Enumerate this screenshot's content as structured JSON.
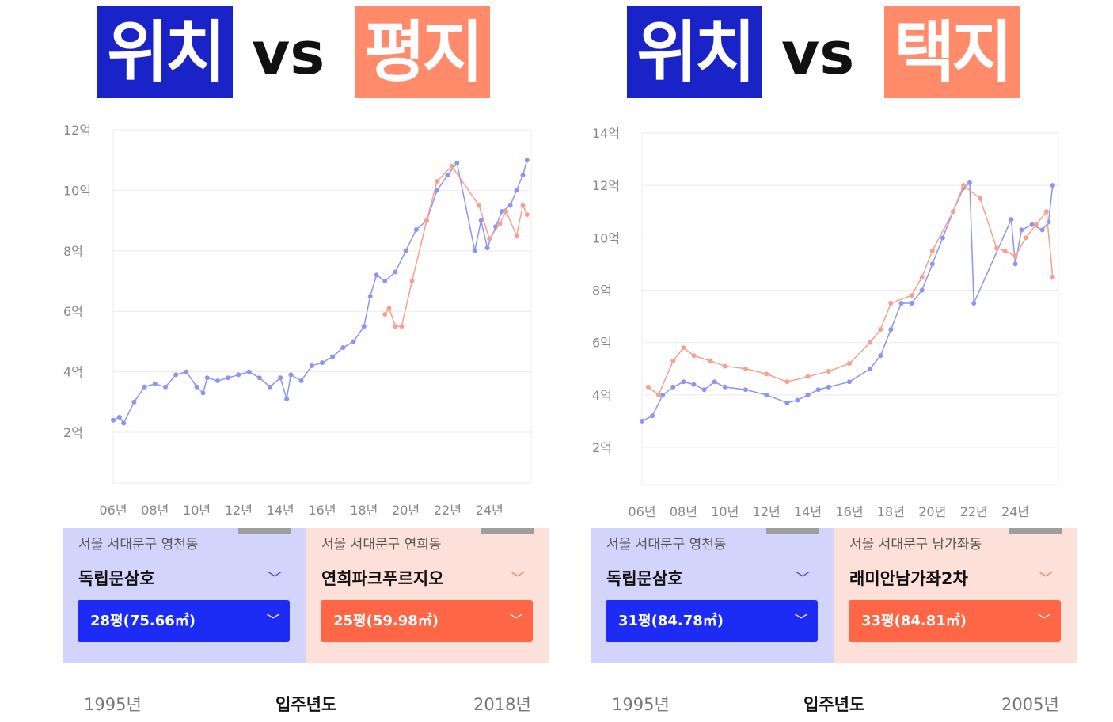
{
  "colors": {
    "blue": "#1a23c8",
    "salmon": "#ff8b6b",
    "series_blue": "#8c96f2",
    "series_red": "#f8a08c"
  },
  "comparisons": [
    {
      "title_left": "위치",
      "vs": "vs",
      "title_right": "평지",
      "left": {
        "address": "서울 서대문구 영천동",
        "name": "독립문삼호",
        "size": "28평(75.66㎡)"
      },
      "right": {
        "address": "서울 서대문구 연희동",
        "name": "연희파크푸르지오",
        "size": "25평(59.98㎡)"
      },
      "move_in": {
        "label": "입주년도",
        "left": "1995년",
        "right": "2018년"
      }
    },
    {
      "title_left": "위치",
      "vs": "vs",
      "title_right": "택지",
      "left": {
        "address": "서울 서대문구 영천동",
        "name": "독립문삼호",
        "size": "31평(84.78㎡)"
      },
      "right": {
        "address": "서울 서대문구 남가좌동",
        "name": "래미안남가좌2차",
        "size": "33평(84.81㎡)"
      },
      "move_in": {
        "label": "입주년도",
        "left": "1995년",
        "right": "2005년"
      }
    }
  ],
  "chart_data": [
    {
      "type": "line",
      "ylim": [
        0,
        12
      ],
      "xlim": [
        2006,
        2026
      ],
      "yticks": [
        "2억",
        "4억",
        "6억",
        "8억",
        "10억",
        "12억"
      ],
      "ytick_values": [
        2,
        4,
        6,
        8,
        10,
        12
      ],
      "xticks": [
        "06년",
        "08년",
        "10년",
        "12년",
        "14년",
        "16년",
        "18년",
        "20년",
        "22년",
        "24년"
      ],
      "xtick_values": [
        2006,
        2008,
        2010,
        2012,
        2014,
        2016,
        2018,
        2020,
        2022,
        2024
      ],
      "series": [
        {
          "name": "독립문삼호",
          "color": "#8c96f2",
          "points": [
            [
              2006,
              2.4
            ],
            [
              2006.3,
              2.5
            ],
            [
              2006.5,
              2.3
            ],
            [
              2007,
              3.0
            ],
            [
              2007.5,
              3.5
            ],
            [
              2008,
              3.6
            ],
            [
              2008.5,
              3.5
            ],
            [
              2009,
              3.9
            ],
            [
              2009.5,
              4.0
            ],
            [
              2010,
              3.5
            ],
            [
              2010.3,
              3.3
            ],
            [
              2010.5,
              3.8
            ],
            [
              2011,
              3.7
            ],
            [
              2011.5,
              3.8
            ],
            [
              2012,
              3.9
            ],
            [
              2012.5,
              4.0
            ],
            [
              2013,
              3.8
            ],
            [
              2013.5,
              3.5
            ],
            [
              2014,
              3.8
            ],
            [
              2014.3,
              3.1
            ],
            [
              2014.5,
              3.9
            ],
            [
              2015,
              3.7
            ],
            [
              2015.5,
              4.2
            ],
            [
              2016,
              4.3
            ],
            [
              2016.5,
              4.5
            ],
            [
              2017,
              4.8
            ],
            [
              2017.5,
              5.0
            ],
            [
              2018,
              5.5
            ],
            [
              2018.3,
              6.5
            ],
            [
              2018.6,
              7.2
            ],
            [
              2019,
              7.0
            ],
            [
              2019.5,
              7.3
            ],
            [
              2020,
              8.0
            ],
            [
              2020.5,
              8.7
            ],
            [
              2021,
              9.0
            ],
            [
              2021.5,
              10.0
            ],
            [
              2022,
              10.5
            ],
            [
              2022.45,
              10.9
            ],
            [
              2023.3,
              8.0
            ],
            [
              2023.6,
              9.0
            ],
            [
              2023.9,
              8.1
            ],
            [
              2024.3,
              8.8
            ],
            [
              2024.6,
              9.3
            ],
            [
              2025,
              9.5
            ],
            [
              2025.3,
              10.0
            ],
            [
              2025.6,
              10.5
            ],
            [
              2025.8,
              11.0
            ]
          ]
        },
        {
          "name": "연희파크푸르지오",
          "color": "#f8a08c",
          "points": [
            [
              2019,
              5.9
            ],
            [
              2019.2,
              6.1
            ],
            [
              2019.5,
              5.5
            ],
            [
              2019.8,
              5.5
            ],
            [
              2020.3,
              7.0
            ],
            [
              2021,
              9.0
            ],
            [
              2021.5,
              10.3
            ],
            [
              2022.2,
              10.8
            ],
            [
              2023.5,
              9.5
            ],
            [
              2024,
              8.4
            ],
            [
              2024.5,
              8.9
            ],
            [
              2024.8,
              9.3
            ],
            [
              2025.3,
              8.5
            ],
            [
              2025.6,
              9.5
            ],
            [
              2025.8,
              9.2
            ]
          ]
        }
      ]
    },
    {
      "type": "line",
      "ylim": [
        0,
        14
      ],
      "xlim": [
        2006,
        2026
      ],
      "yticks": [
        "2억",
        "4억",
        "6억",
        "8억",
        "10억",
        "12억",
        "14억"
      ],
      "ytick_values": [
        2,
        4,
        6,
        8,
        10,
        12,
        14
      ],
      "xticks": [
        "06년",
        "08년",
        "10년",
        "12년",
        "14년",
        "16년",
        "18년",
        "20년",
        "22년",
        "24년"
      ],
      "xtick_values": [
        2006,
        2008,
        2010,
        2012,
        2014,
        2016,
        2018,
        2020,
        2022,
        2024
      ],
      "series": [
        {
          "name": "독립문삼호",
          "color": "#8c96f2",
          "points": [
            [
              2006,
              3.0
            ],
            [
              2006.5,
              3.2
            ],
            [
              2007,
              4.0
            ],
            [
              2007.5,
              4.3
            ],
            [
              2008,
              4.5
            ],
            [
              2008.5,
              4.4
            ],
            [
              2009,
              4.2
            ],
            [
              2009.5,
              4.5
            ],
            [
              2010,
              4.3
            ],
            [
              2011,
              4.2
            ],
            [
              2012,
              4.0
            ],
            [
              2013,
              3.7
            ],
            [
              2013.5,
              3.8
            ],
            [
              2014,
              4.0
            ],
            [
              2014.5,
              4.2
            ],
            [
              2015,
              4.3
            ],
            [
              2016,
              4.5
            ],
            [
              2017,
              5.0
            ],
            [
              2017.5,
              5.5
            ],
            [
              2018,
              6.5
            ],
            [
              2018.5,
              7.5
            ],
            [
              2019,
              7.5
            ],
            [
              2019.5,
              8.0
            ],
            [
              2020,
              9.0
            ],
            [
              2020.5,
              10.0
            ],
            [
              2021,
              11.0
            ],
            [
              2021.5,
              11.9
            ],
            [
              2021.8,
              12.1
            ],
            [
              2022,
              7.5
            ],
            [
              2023.8,
              10.7
            ],
            [
              2024,
              9.0
            ],
            [
              2024.3,
              10.3
            ],
            [
              2024.8,
              10.5
            ],
            [
              2025.3,
              10.3
            ],
            [
              2025.6,
              10.6
            ],
            [
              2025.8,
              12.0
            ]
          ]
        },
        {
          "name": "래미안남가좌2차",
          "color": "#f8a08c",
          "points": [
            [
              2006.3,
              4.3
            ],
            [
              2006.8,
              4.0
            ],
            [
              2007.5,
              5.3
            ],
            [
              2008,
              5.8
            ],
            [
              2008.5,
              5.5
            ],
            [
              2009.3,
              5.3
            ],
            [
              2010,
              5.1
            ],
            [
              2011,
              5.0
            ],
            [
              2012,
              4.8
            ],
            [
              2013,
              4.5
            ],
            [
              2014,
              4.7
            ],
            [
              2015,
              4.9
            ],
            [
              2016,
              5.2
            ],
            [
              2017,
              6.0
            ],
            [
              2017.5,
              6.5
            ],
            [
              2018,
              7.5
            ],
            [
              2019,
              7.8
            ],
            [
              2019.5,
              8.5
            ],
            [
              2020,
              9.5
            ],
            [
              2021,
              11.0
            ],
            [
              2021.5,
              12.0
            ],
            [
              2022.3,
              11.5
            ],
            [
              2023.1,
              9.6
            ],
            [
              2023.5,
              9.5
            ],
            [
              2024,
              9.3
            ],
            [
              2024.5,
              10.0
            ],
            [
              2025,
              10.5
            ],
            [
              2025.5,
              11.0
            ],
            [
              2025.8,
              8.5
            ]
          ]
        }
      ]
    }
  ]
}
